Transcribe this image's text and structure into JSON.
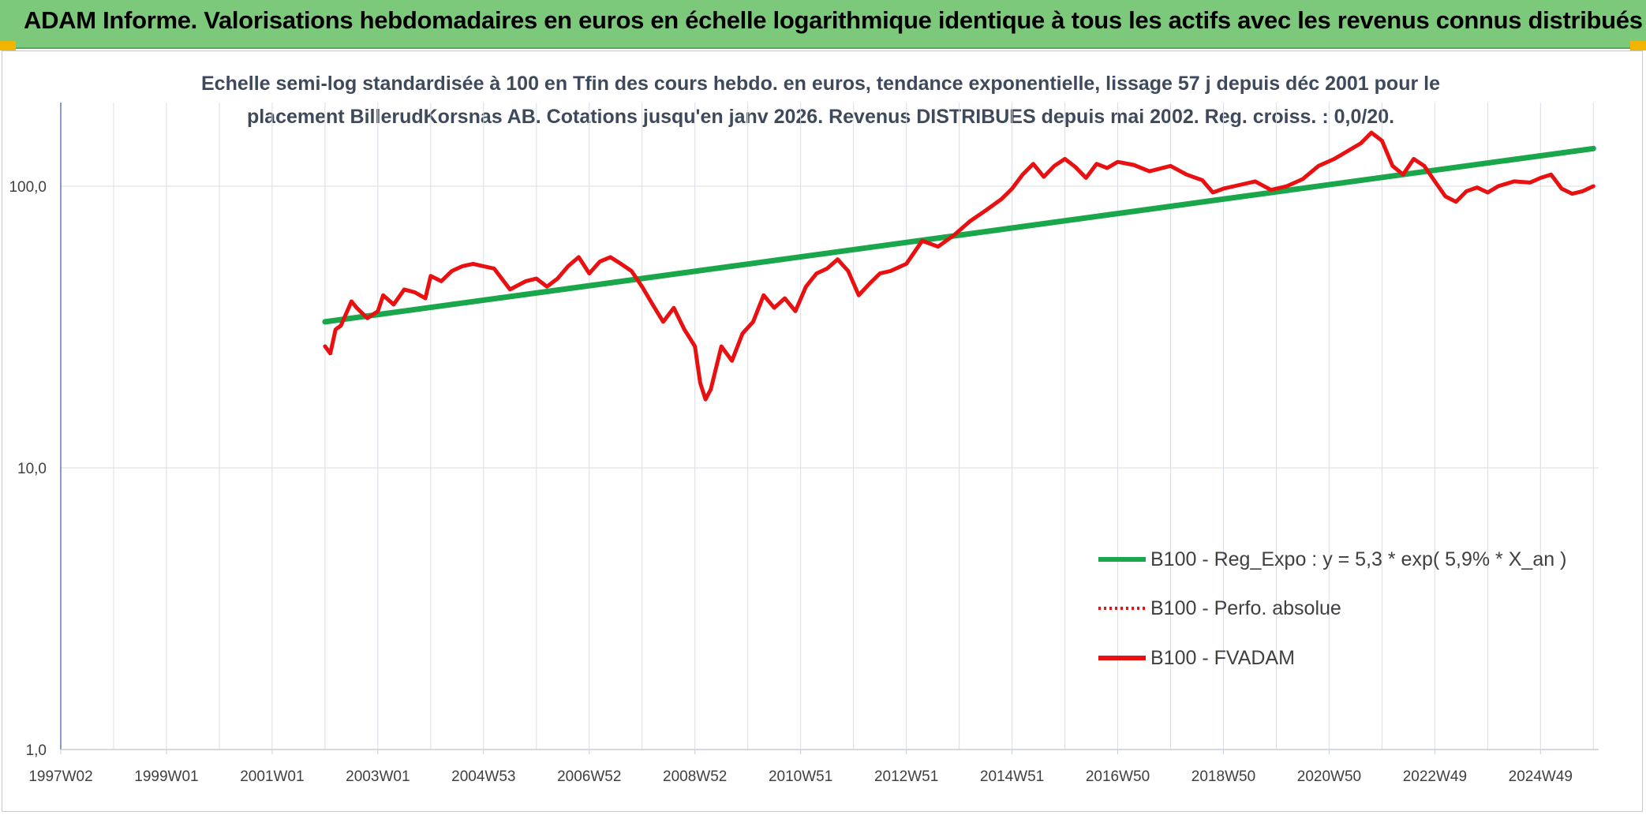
{
  "banner": {
    "title": "ADAM Informe. Valorisations hebdomadaires en euros en échelle logarithmique identique à tous les actifs avec les revenus connus distribués"
  },
  "colors": {
    "banner_bg": "#7dc97b",
    "regression": "#1aa64a",
    "fvadam": "#e81010",
    "perfo": "#e81010",
    "grid": "#d9dee6",
    "axis": "#5b7fb5"
  },
  "chart_data": {
    "type": "line",
    "title_line1": "Echelle semi-log standardisée à 100 en Tfin des cours hebdo. en euros, tendance exponentielle, lissage 57 j depuis déc 2001 pour le",
    "title_line2": "placement BillerudKorsnas AB. Cotations jusqu'en janv 2026. Revenus DISTRIBUES depuis mai 2002. Reg. croiss. : 0,0/20.",
    "y_scale": "log",
    "ylim": [
      1,
      200
    ],
    "y_ticks": [
      {
        "value": 1,
        "label": "1,0"
      },
      {
        "value": 10,
        "label": "10,0"
      },
      {
        "value": 100,
        "label": "100,0"
      }
    ],
    "xlim": [
      1997.0,
      2026.1
    ],
    "x_ticks": [
      {
        "value": 1997.0,
        "label": "1997W02"
      },
      {
        "value": 1999.0,
        "label": "1999W01"
      },
      {
        "value": 2001.0,
        "label": "2001W01"
      },
      {
        "value": 2003.0,
        "label": "2003W01"
      },
      {
        "value": 2005.0,
        "label": "2004W53"
      },
      {
        "value": 2007.0,
        "label": "2006W52"
      },
      {
        "value": 2009.0,
        "label": "2008W52"
      },
      {
        "value": 2011.0,
        "label": "2010W51"
      },
      {
        "value": 2013.0,
        "label": "2012W51"
      },
      {
        "value": 2015.0,
        "label": "2014W51"
      },
      {
        "value": 2017.0,
        "label": "2016W50"
      },
      {
        "value": 2019.0,
        "label": "2018W50"
      },
      {
        "value": 2021.0,
        "label": "2020W50"
      },
      {
        "value": 2023.0,
        "label": "2022W49"
      },
      {
        "value": 2025.0,
        "label": "2024W49"
      }
    ],
    "grid": true,
    "legend_position": "bottom-right",
    "series": [
      {
        "name": "B100 - Reg_Expo : y = 5,3 * exp( 5,9% *  X_an )",
        "style": "solid-green",
        "x": [
          2002.0,
          2026.0
        ],
        "y": [
          33.0,
          136.0
        ]
      },
      {
        "name": "B100 - Perfo. absolue",
        "style": "dotted-red",
        "x": [],
        "y": []
      },
      {
        "name": "B100 - FVADAM",
        "style": "solid-red",
        "x": [
          2002.0,
          2002.1,
          2002.2,
          2002.3,
          2002.5,
          2002.6,
          2002.8,
          2003.0,
          2003.1,
          2003.3,
          2003.5,
          2003.7,
          2003.9,
          2004.0,
          2004.2,
          2004.4,
          2004.6,
          2004.8,
          2005.0,
          2005.2,
          2005.5,
          2005.8,
          2006.0,
          2006.2,
          2006.4,
          2006.6,
          2006.8,
          2007.0,
          2007.2,
          2007.4,
          2007.6,
          2007.8,
          2008.0,
          2008.2,
          2008.4,
          2008.6,
          2008.8,
          2009.0,
          2009.1,
          2009.2,
          2009.3,
          2009.5,
          2009.7,
          2009.9,
          2010.1,
          2010.3,
          2010.5,
          2010.7,
          2010.9,
          2011.1,
          2011.3,
          2011.5,
          2011.7,
          2011.9,
          2012.1,
          2012.3,
          2012.5,
          2012.7,
          2013.0,
          2013.3,
          2013.6,
          2013.9,
          2014.2,
          2014.5,
          2014.8,
          2015.0,
          2015.2,
          2015.4,
          2015.6,
          2015.8,
          2016.0,
          2016.2,
          2016.4,
          2016.6,
          2016.8,
          2017.0,
          2017.3,
          2017.6,
          2018.0,
          2018.3,
          2018.6,
          2018.8,
          2019.0,
          2019.3,
          2019.6,
          2019.9,
          2020.2,
          2020.5,
          2020.8,
          2021.1,
          2021.4,
          2021.6,
          2021.8,
          2022.0,
          2022.2,
          2022.4,
          2022.6,
          2022.8,
          2023.0,
          2023.2,
          2023.4,
          2023.6,
          2023.8,
          2024.0,
          2024.2,
          2024.5,
          2024.8,
          2025.0,
          2025.2,
          2025.4,
          2025.6,
          2025.8,
          2026.0
        ],
        "y": [
          27.0,
          25.5,
          31.0,
          32.0,
          39.0,
          37.0,
          34.0,
          36.0,
          41.0,
          38.0,
          43.0,
          42.0,
          40.0,
          48.0,
          46.0,
          50.0,
          52.0,
          53.0,
          52.0,
          51.0,
          43.0,
          46.0,
          47.0,
          44.0,
          47.0,
          52.0,
          56.0,
          49.0,
          54.0,
          56.0,
          53.0,
          50.0,
          44.0,
          38.0,
          33.0,
          37.0,
          31.0,
          27.0,
          20.0,
          17.5,
          19.0,
          27.0,
          24.0,
          30.0,
          33.0,
          41.0,
          37.0,
          40.0,
          36.0,
          44.0,
          49.0,
          51.0,
          55.0,
          50.0,
          41.0,
          45.0,
          49.0,
          50.0,
          53.0,
          64.0,
          61.0,
          67.0,
          75.0,
          82.0,
          90.0,
          98.0,
          110.0,
          120.0,
          108.0,
          118.0,
          125.0,
          117.0,
          107.0,
          120.0,
          116.0,
          122.0,
          119.0,
          113.0,
          118.0,
          110.0,
          105.0,
          95.0,
          98.0,
          101.0,
          104.0,
          97.0,
          100.0,
          106.0,
          118.0,
          125.0,
          135.0,
          142.0,
          155.0,
          145.0,
          118.0,
          110.0,
          125.0,
          118.0,
          104.0,
          92.0,
          88.0,
          96.0,
          99.0,
          95.0,
          100.0,
          104.0,
          103.0,
          107.0,
          110.0,
          98.0,
          94.0,
          96.0,
          100.0
        ]
      }
    ]
  }
}
